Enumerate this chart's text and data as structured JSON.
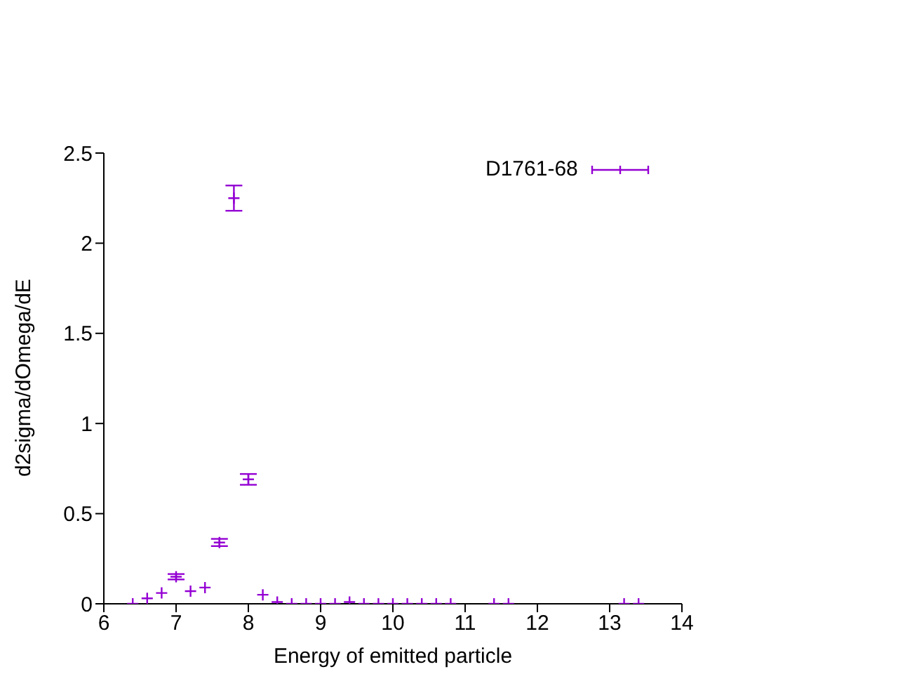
{
  "chart_data": {
    "type": "scatter",
    "xlabel": "Energy of emitted particle",
    "ylabel": "d2sigma/dOmega/dE",
    "xlim": [
      6,
      14
    ],
    "xticks": [
      6,
      7,
      8,
      9,
      10,
      11,
      12,
      13,
      14
    ],
    "ylim": [
      0,
      2.5
    ],
    "yticks": [
      0,
      0.5,
      1,
      1.5,
      2,
      2.5
    ],
    "grid": false,
    "legend": "top right",
    "marker": "cross",
    "x": [
      6.4,
      6.6,
      6.8,
      7.0,
      7.2,
      7.4,
      7.6,
      7.8,
      8.0,
      8.2,
      8.4,
      8.6,
      8.8,
      9.0,
      9.2,
      9.4,
      9.6,
      9.8,
      10.0,
      10.2,
      10.4,
      10.6,
      10.8,
      11.4,
      11.6,
      13.2,
      13.4
    ],
    "series": [
      {
        "name": "D1761-68",
        "color": "#9400d3",
        "values": [
          0.0,
          0.03,
          0.06,
          0.15,
          0.07,
          0.09,
          0.34,
          2.25,
          0.69,
          0.05,
          0.01,
          0,
          0,
          0,
          0,
          0.01,
          0,
          0,
          0,
          0,
          0,
          0,
          0,
          0,
          0,
          0,
          0
        ],
        "errors": [
          null,
          null,
          null,
          0.015,
          null,
          null,
          0.02,
          0.07,
          0.03,
          null,
          null,
          null,
          null,
          null,
          null,
          null,
          null,
          null,
          null,
          null,
          null,
          null,
          null,
          null,
          null,
          null,
          null
        ]
      }
    ]
  }
}
